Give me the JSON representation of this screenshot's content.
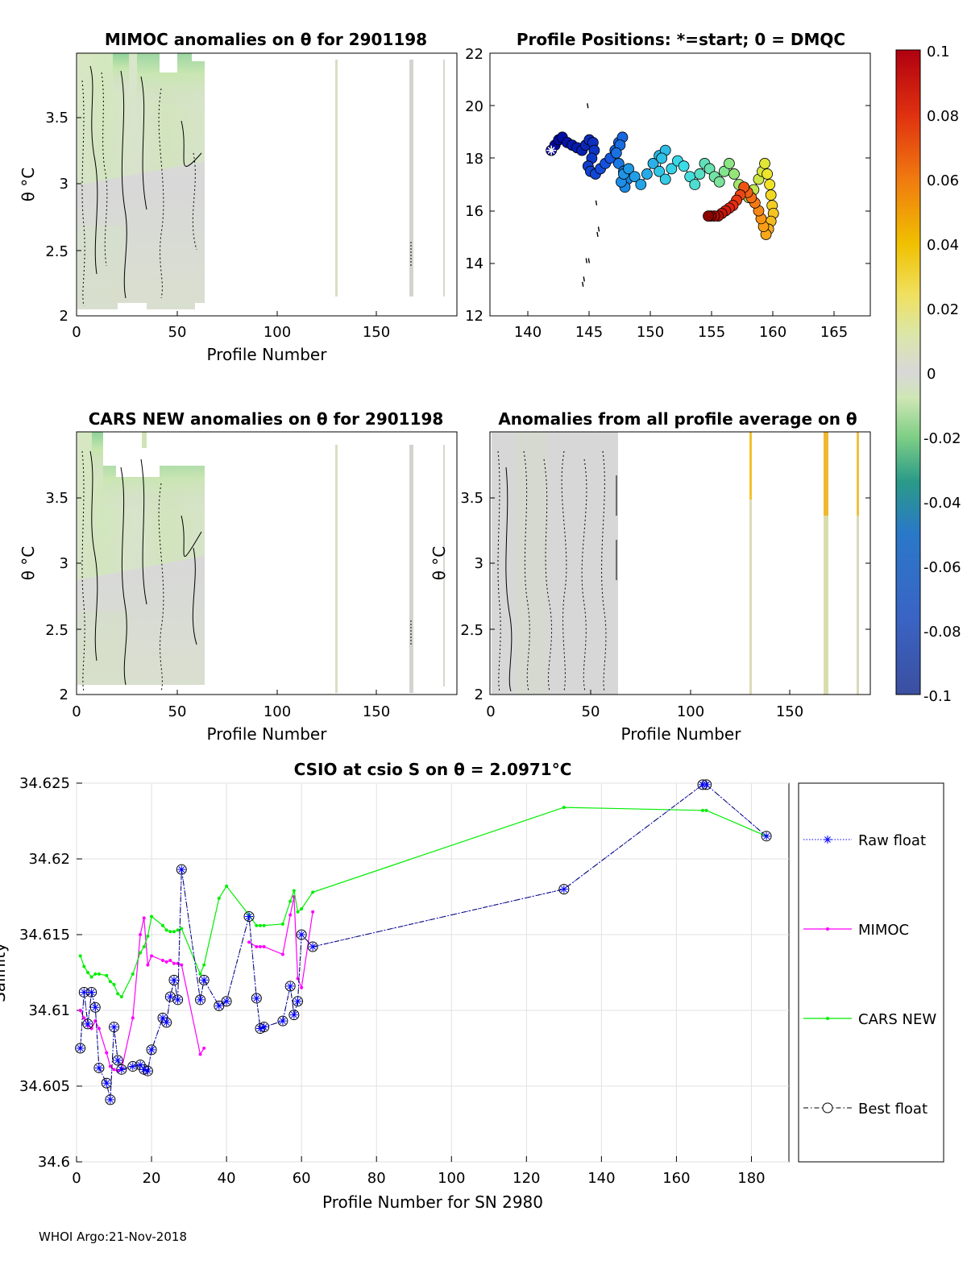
{
  "footer": "WHOI Argo:21-Nov-2018",
  "panels": {
    "mimoc": {
      "title": "MIMOC anomalies on θ  for 2901198",
      "xlabel": "Profile Number",
      "ylabel": "θ °C",
      "xticks": [
        "0",
        "50",
        "100",
        "150"
      ],
      "yticks": [
        "2",
        "2.5",
        "3",
        "3.5"
      ]
    },
    "positions": {
      "title": "Profile Positions: *=start; 0 = DMQC",
      "xticks": [
        "140",
        "145",
        "150",
        "155",
        "160",
        "165"
      ],
      "yticks": [
        "12",
        "14",
        "16",
        "18",
        "20",
        "22"
      ]
    },
    "cars": {
      "title": "CARS NEW anomalies on θ for 2901198",
      "xlabel": "Profile Number",
      "ylabel": "θ °C",
      "xticks": [
        "0",
        "50",
        "100",
        "150"
      ],
      "yticks": [
        "2",
        "2.5",
        "3",
        "3.5"
      ]
    },
    "allavg": {
      "title": "Anomalies from all profile average on θ",
      "xlabel": "Profile Number",
      "ylabel": "θ °C",
      "xticks": [
        "0",
        "50",
        "100",
        "150"
      ],
      "yticks": [
        "2",
        "2.5",
        "3",
        "3.5"
      ]
    },
    "colorbar": {
      "ticks": [
        "0.1",
        "0.08",
        "0.06",
        "0.04",
        "0.02",
        "0",
        "-0.02",
        "-0.04",
        "-0.06",
        "-0.08",
        "-0.1"
      ]
    }
  },
  "chart_data": [
    {
      "id": "positions",
      "type": "scatter",
      "title": "Profile Positions: *=start; 0 = DMQC",
      "xlim": [
        137,
        168
      ],
      "ylim": [
        12,
        22
      ],
      "lon": [
        142.0,
        142.3,
        142.6,
        142.9,
        143.3,
        143.7,
        144.1,
        144.5,
        144.8,
        145.1,
        145.4,
        145.5,
        145.3,
        145.0,
        145.2,
        145.6,
        146.0,
        146.4,
        146.8,
        147.2,
        147.5,
        147.8,
        147.6,
        147.3,
        147.5,
        147.9,
        148.2,
        148.0,
        147.7,
        147.9,
        148.3,
        148.8,
        149.3,
        149.8,
        150.3,
        150.8,
        151.3,
        151.0,
        150.8,
        151.3,
        151.8,
        152.3,
        152.8,
        153.3,
        153.7,
        154.1,
        154.5,
        154.9,
        155.3,
        155.7,
        156.1,
        156.5,
        156.9,
        157.3,
        157.7,
        158.1,
        158.5,
        158.9,
        159.2,
        159.4,
        159.6,
        159.8,
        159.9,
        160.0,
        160.1,
        159.9,
        159.7,
        159.5,
        159.3,
        159.1,
        158.9,
        158.6,
        158.3,
        158.0,
        157.7,
        157.4,
        157.1,
        156.8,
        156.5,
        156.2,
        155.9,
        155.6,
        155.3,
        155.0,
        154.8
      ],
      "lat": [
        18.3,
        18.5,
        18.7,
        18.8,
        18.6,
        18.5,
        18.4,
        18.3,
        18.5,
        18.7,
        18.6,
        18.3,
        18.0,
        17.7,
        17.5,
        17.4,
        17.6,
        17.8,
        18.0,
        18.3,
        18.6,
        18.8,
        18.5,
        18.2,
        17.8,
        17.5,
        17.2,
        16.9,
        17.1,
        17.4,
        17.6,
        17.3,
        17.0,
        17.4,
        17.8,
        18.1,
        18.3,
        18.0,
        17.5,
        17.2,
        17.6,
        17.9,
        17.7,
        17.3,
        17.0,
        17.4,
        17.8,
        17.6,
        17.3,
        17.1,
        17.5,
        17.8,
        17.4,
        17.0,
        16.7,
        16.5,
        16.8,
        17.2,
        17.5,
        17.8,
        17.4,
        17.0,
        16.6,
        16.2,
        15.9,
        15.6,
        15.3,
        15.1,
        15.4,
        15.7,
        16.0,
        16.3,
        16.5,
        16.7,
        16.9,
        16.6,
        16.4,
        16.2,
        16.1,
        16.0,
        15.9,
        15.8,
        15.8,
        15.8,
        15.8
      ],
      "extra_traj": [
        [
          145.0,
          20.0
        ],
        [
          145.7,
          16.3
        ],
        [
          145.9,
          15.3
        ],
        [
          145.8,
          15.1
        ],
        [
          145.1,
          14.1
        ],
        [
          144.9,
          14.1
        ],
        [
          144.7,
          13.4
        ],
        [
          144.6,
          13.2
        ]
      ]
    },
    {
      "id": "csio",
      "type": "line",
      "title": "CSIO at csio S on θ = 2.0971°C",
      "xlabel": "Profile Number for SN 2980",
      "ylabel": "Salinity",
      "xlim": [
        0,
        190
      ],
      "ylim": [
        34.6,
        34.625
      ],
      "xticks": [
        "0",
        "20",
        "40",
        "60",
        "80",
        "100",
        "120",
        "140",
        "160",
        "180"
      ],
      "yticks": [
        "34.6",
        "34.605",
        "34.61",
        "34.615",
        "34.62",
        "34.625"
      ],
      "legend": [
        "Raw float",
        "MIMOC",
        "CARS NEW",
        "Best float"
      ],
      "series": [
        {
          "name": "Best float",
          "color": "#000000",
          "x": [
            1,
            2,
            3,
            4,
            5,
            6,
            8,
            9,
            10,
            11,
            12,
            15,
            17,
            18,
            19,
            20,
            23,
            24,
            25,
            26,
            27,
            28,
            33,
            34,
            38,
            40,
            46,
            48,
            49,
            50,
            55,
            57,
            58,
            59,
            60,
            63,
            130,
            167,
            168,
            184
          ],
          "y": [
            34.6075,
            34.6112,
            34.6091,
            34.6112,
            34.6102,
            34.6062,
            34.6052,
            34.6041,
            34.6089,
            34.6067,
            34.6061,
            34.6063,
            34.6064,
            34.6061,
            34.606,
            34.6074,
            34.6095,
            34.6092,
            34.6109,
            34.612,
            34.6107,
            34.6193,
            34.6107,
            34.612,
            34.6103,
            34.6106,
            34.6162,
            34.6108,
            34.6088,
            34.6089,
            34.6093,
            34.6116,
            34.6097,
            34.6106,
            34.615,
            34.6142,
            34.618,
            34.6249,
            34.6249,
            34.6215
          ]
        },
        {
          "name": "MIMOC",
          "color": "#ff00ff",
          "x": [
            1,
            2,
            3,
            4,
            5,
            6,
            8,
            9,
            10,
            11,
            12,
            15,
            17,
            18,
            19,
            20,
            23,
            24,
            25,
            26,
            27,
            28,
            33,
            34,
            46,
            48,
            49,
            50,
            55,
            57,
            58,
            59,
            60,
            63
          ],
          "y": [
            34.61,
            34.6095,
            34.609,
            34.6088,
            34.6093,
            34.6088,
            34.6072,
            34.6063,
            34.6061,
            34.606,
            34.6061,
            34.6095,
            34.615,
            34.6161,
            34.613,
            34.6136,
            34.6133,
            34.6132,
            34.6133,
            34.6131,
            34.6131,
            34.613,
            34.6071,
            34.6075,
            34.6145,
            34.6142,
            34.6142,
            34.6142,
            34.6137,
            34.6163,
            34.6175,
            34.6121,
            34.6115,
            34.6165
          ]
        },
        {
          "name": "CARS NEW",
          "color": "#00ee00",
          "x": [
            1,
            2,
            3,
            4,
            5,
            6,
            8,
            9,
            10,
            11,
            12,
            15,
            17,
            18,
            19,
            20,
            23,
            24,
            25,
            26,
            27,
            28,
            33,
            34,
            38,
            40,
            46,
            48,
            49,
            50,
            55,
            57,
            58,
            59,
            60,
            63,
            130,
            167,
            168,
            184
          ],
          "y": [
            34.6136,
            34.6129,
            34.6125,
            34.6122,
            34.6124,
            34.6124,
            34.6123,
            34.6119,
            34.6117,
            34.6111,
            34.6109,
            34.6124,
            34.6138,
            34.6142,
            34.6149,
            34.6162,
            34.6156,
            34.6153,
            34.6152,
            34.6152,
            34.6153,
            34.6154,
            34.6124,
            34.613,
            34.6174,
            34.6182,
            34.6163,
            34.6156,
            34.6156,
            34.6156,
            34.6157,
            34.6172,
            34.6179,
            34.6165,
            34.6167,
            34.6178,
            34.6234,
            34.6232,
            34.6232,
            34.6215
          ]
        },
        {
          "name": "Raw float",
          "color": "#0000ff",
          "x": [
            1,
            2,
            3,
            4,
            5,
            6,
            8,
            9,
            10,
            11,
            12,
            15,
            17,
            18,
            19,
            20,
            23,
            24,
            25,
            26,
            27,
            28,
            33,
            34,
            38,
            40,
            46,
            48,
            49,
            50,
            55,
            57,
            58,
            59,
            60,
            63,
            130,
            167,
            168,
            184
          ],
          "y": [
            34.6075,
            34.6112,
            34.6091,
            34.6112,
            34.6102,
            34.6062,
            34.6052,
            34.6041,
            34.6089,
            34.6067,
            34.6061,
            34.6063,
            34.6064,
            34.6061,
            34.606,
            34.6074,
            34.6095,
            34.6092,
            34.6109,
            34.612,
            34.6107,
            34.6193,
            34.6107,
            34.612,
            34.6103,
            34.6106,
            34.6162,
            34.6108,
            34.6088,
            34.6089,
            34.6093,
            34.6116,
            34.6097,
            34.6106,
            34.615,
            34.6142,
            34.618,
            34.6249,
            34.6249,
            34.6215
          ]
        }
      ]
    }
  ]
}
